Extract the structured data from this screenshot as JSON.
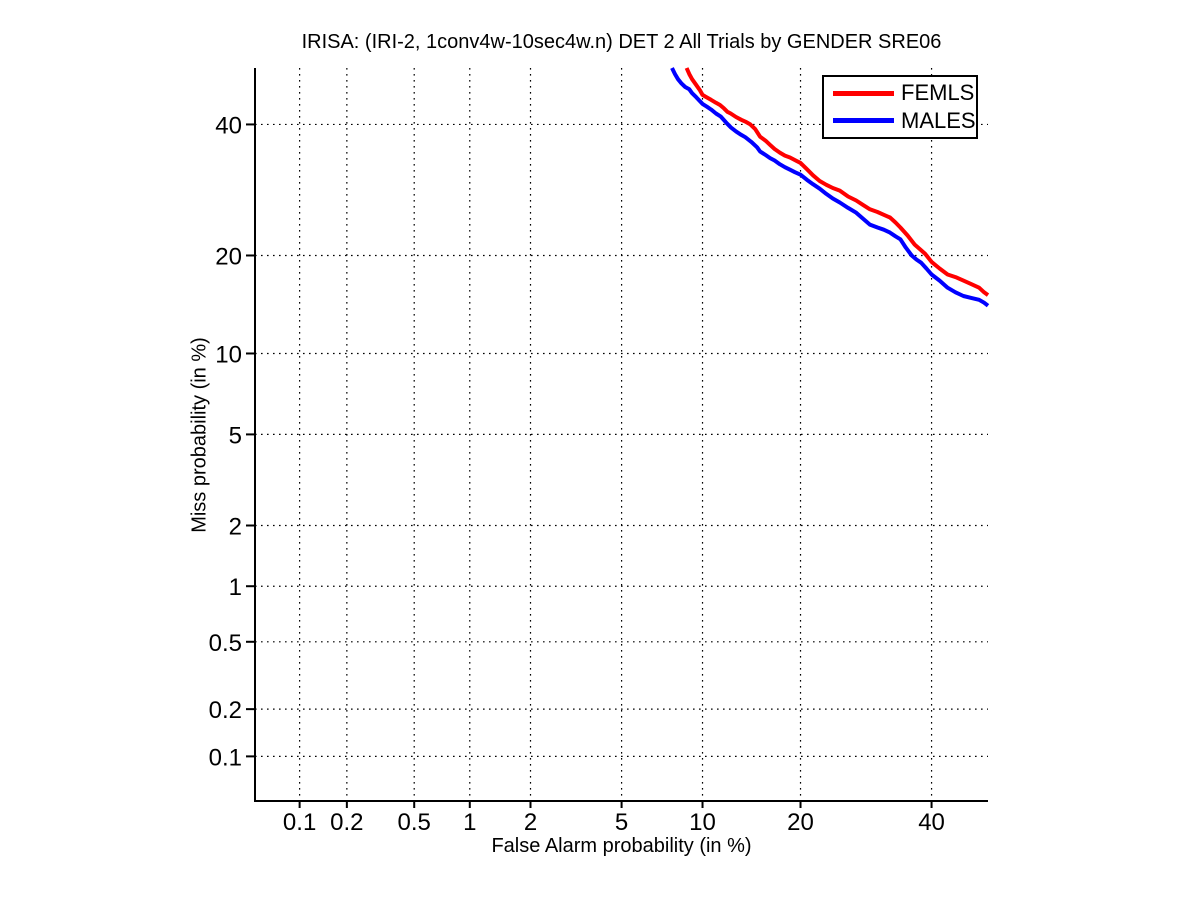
{
  "figure": {
    "background": "#ffffff"
  },
  "chart_data": {
    "type": "line",
    "subtype": "DET curve (both axes on normal-deviate / probit scale)",
    "title": "IRISA: (IRI-2, 1conv4w-10sec4w.n) DET 2 All Trials by GENDER SRE06",
    "xlabel": "False Alarm probability (in %)",
    "ylabel": "Miss probability (in %)",
    "xlim_pct": [
      0.05,
      50
    ],
    "ylim_pct": [
      0.05,
      50
    ],
    "xticks_pct": [
      0.1,
      0.2,
      0.5,
      1,
      2,
      5,
      10,
      20,
      40
    ],
    "yticks_pct": [
      0.1,
      0.2,
      0.5,
      1,
      2,
      5,
      10,
      20,
      40
    ],
    "xtick_labels": [
      "0.1",
      "0.2",
      "0.5",
      "1",
      "2",
      "5",
      "10",
      "20",
      "40"
    ],
    "ytick_labels": [
      "0.1",
      "0.2",
      "0.5",
      "1",
      "2",
      "5",
      "10",
      "20",
      "40"
    ],
    "grid": {
      "on": true,
      "style": "dotted",
      "color": "#000000"
    },
    "axis_color": "#000000",
    "legend": {
      "position": "top-right",
      "border_color": "#000000",
      "background": "#ffffff",
      "entries": [
        {
          "label": "FEMLS",
          "color": "#ff0000"
        },
        {
          "label": "MALES",
          "color": "#0000ff"
        }
      ]
    },
    "series": [
      {
        "name": "FEMLS",
        "color": "#ff0000",
        "line_width": 4,
        "points_fa_miss_pct": [
          [
            8.8,
            50.0
          ],
          [
            9.0,
            48.9
          ],
          [
            9.2,
            48.0
          ],
          [
            9.5,
            47.0
          ],
          [
            9.8,
            46.0
          ],
          [
            10.0,
            45.2
          ],
          [
            10.3,
            44.8
          ],
          [
            10.7,
            44.3
          ],
          [
            11.1,
            43.8
          ],
          [
            11.45,
            43.4
          ],
          [
            11.8,
            42.8
          ],
          [
            12.1,
            42.2
          ],
          [
            12.4,
            41.9
          ],
          [
            12.9,
            41.3
          ],
          [
            13.4,
            40.8
          ],
          [
            13.9,
            40.4
          ],
          [
            14.3,
            40.0
          ],
          [
            14.8,
            39.2
          ],
          [
            15.3,
            37.9
          ],
          [
            15.9,
            37.2
          ],
          [
            16.4,
            36.5
          ],
          [
            16.9,
            35.8
          ],
          [
            17.5,
            35.2
          ],
          [
            18.1,
            34.7
          ],
          [
            18.7,
            34.4
          ],
          [
            19.4,
            33.9
          ],
          [
            20.0,
            33.5
          ],
          [
            20.8,
            32.5
          ],
          [
            21.6,
            31.5
          ],
          [
            22.5,
            30.6
          ],
          [
            23.4,
            30.0
          ],
          [
            24.3,
            29.5
          ],
          [
            25.3,
            29.1
          ],
          [
            26.5,
            28.2
          ],
          [
            27.7,
            27.6
          ],
          [
            28.8,
            26.9
          ],
          [
            29.8,
            26.3
          ],
          [
            31.0,
            25.9
          ],
          [
            32.0,
            25.5
          ],
          [
            33.0,
            25.1
          ],
          [
            33.9,
            24.4
          ],
          [
            34.7,
            23.7
          ],
          [
            35.9,
            22.6
          ],
          [
            37.1,
            21.4
          ],
          [
            38.0,
            20.8
          ],
          [
            38.9,
            20.2
          ],
          [
            40.0,
            19.2
          ],
          [
            41.4,
            18.4
          ],
          [
            42.8,
            17.7
          ],
          [
            44.2,
            17.4
          ],
          [
            45.6,
            17.0
          ],
          [
            47.0,
            16.6
          ],
          [
            48.4,
            16.2
          ],
          [
            49.3,
            15.7
          ],
          [
            50.0,
            15.4
          ]
        ]
      },
      {
        "name": "MALES",
        "color": "#0000ff",
        "line_width": 4,
        "points_fa_miss_pct": [
          [
            7.8,
            50.0
          ],
          [
            8.0,
            48.9
          ],
          [
            8.2,
            48.0
          ],
          [
            8.45,
            47.2
          ],
          [
            8.7,
            46.6
          ],
          [
            9.0,
            46.2
          ],
          [
            9.2,
            45.5
          ],
          [
            9.5,
            44.8
          ],
          [
            9.75,
            44.2
          ],
          [
            10.0,
            43.6
          ],
          [
            10.35,
            43.1
          ],
          [
            10.7,
            42.6
          ],
          [
            11.1,
            41.9
          ],
          [
            11.5,
            41.4
          ],
          [
            12.0,
            40.3
          ],
          [
            12.4,
            39.5
          ],
          [
            12.9,
            38.8
          ],
          [
            13.4,
            38.2
          ],
          [
            13.8,
            37.8
          ],
          [
            14.4,
            37.0
          ],
          [
            15.0,
            36.1
          ],
          [
            15.3,
            35.4
          ],
          [
            15.9,
            34.8
          ],
          [
            16.4,
            34.3
          ],
          [
            16.9,
            33.9
          ],
          [
            17.5,
            33.3
          ],
          [
            18.1,
            32.8
          ],
          [
            18.7,
            32.4
          ],
          [
            19.3,
            32.0
          ],
          [
            20.0,
            31.6
          ],
          [
            20.8,
            30.8
          ],
          [
            21.6,
            30.1
          ],
          [
            22.5,
            29.4
          ],
          [
            23.4,
            28.6
          ],
          [
            24.3,
            27.9
          ],
          [
            25.3,
            27.3
          ],
          [
            26.5,
            26.5
          ],
          [
            27.7,
            25.8
          ],
          [
            28.8,
            24.9
          ],
          [
            29.8,
            24.1
          ],
          [
            31.0,
            23.7
          ],
          [
            32.0,
            23.4
          ],
          [
            33.0,
            23.0
          ],
          [
            33.9,
            22.5
          ],
          [
            34.7,
            22.1
          ],
          [
            35.6,
            21.0
          ],
          [
            36.6,
            20.0
          ],
          [
            37.4,
            19.5
          ],
          [
            38.2,
            19.1
          ],
          [
            39.1,
            18.4
          ],
          [
            40.0,
            17.7
          ],
          [
            41.4,
            17.0
          ],
          [
            42.8,
            16.2
          ],
          [
            44.2,
            15.7
          ],
          [
            45.6,
            15.3
          ],
          [
            47.0,
            15.1
          ],
          [
            48.4,
            14.9
          ],
          [
            49.3,
            14.6
          ],
          [
            50.0,
            14.3
          ]
        ]
      }
    ]
  }
}
